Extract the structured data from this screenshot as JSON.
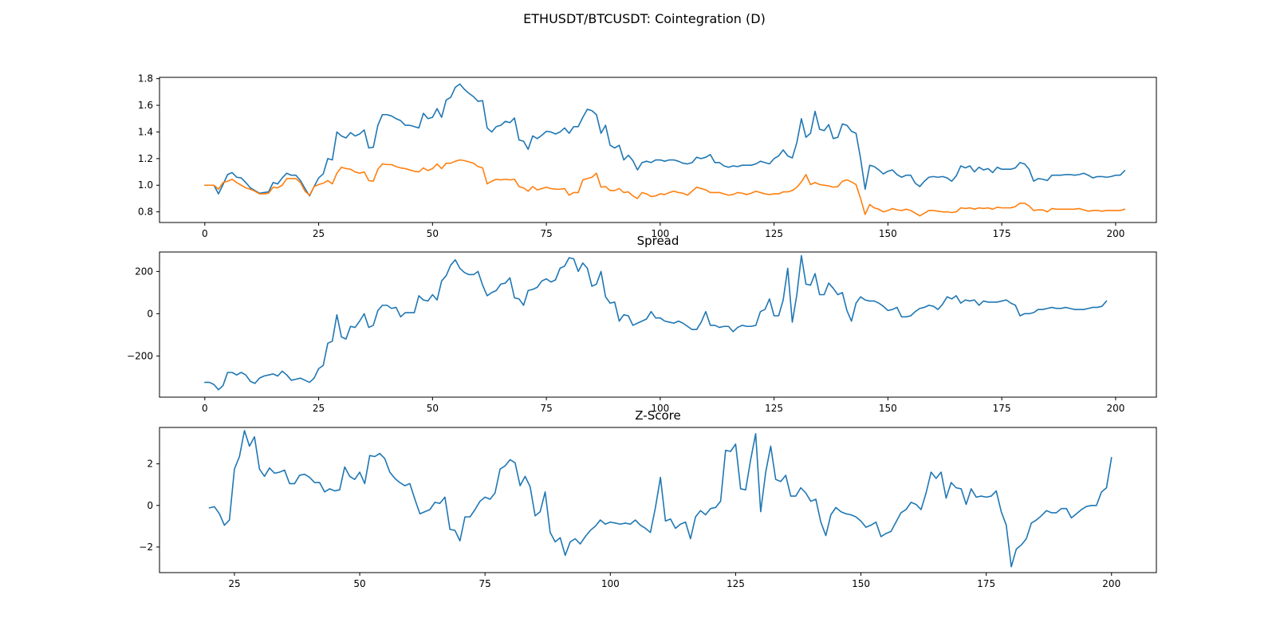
{
  "figure": {
    "suptitle": "ETHUSDT/BTCUSDT: Cointegration (D)"
  },
  "colors": {
    "series_1": "#1f77b4",
    "series_2": "#ff7f0e"
  },
  "chart_data": [
    {
      "type": "line",
      "title": "",
      "xlabel": "",
      "ylabel": "",
      "xlim": [
        -9.95,
        208.95
      ],
      "ylim": [
        0.72,
        1.81
      ],
      "xticks": [
        0,
        25,
        50,
        75,
        100,
        125,
        150,
        175,
        200
      ],
      "yticks": [
        0.8,
        1.0,
        1.2,
        1.4,
        1.6,
        1.8
      ],
      "ytick_labels": [
        "0.8",
        "1.0",
        "1.2",
        "1.4",
        "1.6",
        "1.8"
      ],
      "grid": false,
      "legend": "none",
      "series": [
        {
          "color": "#1f77b4",
          "x_start": 0,
          "values": [
            1.0,
            1.0,
            1.0,
            0.935,
            1.005,
            1.08,
            1.095,
            1.06,
            1.055,
            1.02,
            0.98,
            0.96,
            0.94,
            0.945,
            0.95,
            1.02,
            1.01,
            1.055,
            1.09,
            1.075,
            1.075,
            1.035,
            0.975,
            0.92,
            0.99,
            1.055,
            1.085,
            1.2,
            1.19,
            1.4,
            1.37,
            1.355,
            1.395,
            1.37,
            1.385,
            1.415,
            1.28,
            1.285,
            1.45,
            1.53,
            1.53,
            1.52,
            1.5,
            1.485,
            1.45,
            1.45,
            1.44,
            1.43,
            1.54,
            1.5,
            1.51,
            1.575,
            1.51,
            1.64,
            1.66,
            1.735,
            1.76,
            1.72,
            1.69,
            1.665,
            1.63,
            1.635,
            1.43,
            1.4,
            1.44,
            1.45,
            1.48,
            1.47,
            1.505,
            1.34,
            1.33,
            1.27,
            1.37,
            1.35,
            1.375,
            1.405,
            1.4,
            1.385,
            1.4,
            1.43,
            1.39,
            1.44,
            1.44,
            1.51,
            1.57,
            1.56,
            1.53,
            1.39,
            1.45,
            1.3,
            1.28,
            1.3,
            1.19,
            1.225,
            1.185,
            1.115,
            1.17,
            1.18,
            1.17,
            1.19,
            1.19,
            1.18,
            1.19,
            1.19,
            1.18,
            1.165,
            1.16,
            1.17,
            1.21,
            1.2,
            1.21,
            1.23,
            1.17,
            1.17,
            1.145,
            1.135,
            1.145,
            1.14,
            1.15,
            1.15,
            1.15,
            1.16,
            1.18,
            1.17,
            1.16,
            1.2,
            1.22,
            1.265,
            1.22,
            1.205,
            1.32,
            1.5,
            1.36,
            1.39,
            1.555,
            1.42,
            1.41,
            1.455,
            1.35,
            1.36,
            1.46,
            1.45,
            1.405,
            1.39,
            1.2,
            0.97,
            1.15,
            1.14,
            1.115,
            1.085,
            1.105,
            1.115,
            1.08,
            1.06,
            1.075,
            1.075,
            1.015,
            0.99,
            1.03,
            1.06,
            1.065,
            1.06,
            1.065,
            1.055,
            1.03,
            1.07,
            1.145,
            1.13,
            1.145,
            1.1,
            1.135,
            1.115,
            1.125,
            1.095,
            1.135,
            1.12,
            1.12,
            1.12,
            1.13,
            1.17,
            1.16,
            1.12,
            1.03,
            1.05,
            1.045,
            1.035,
            1.075,
            1.075,
            1.075,
            1.08,
            1.08,
            1.075,
            1.08,
            1.09,
            1.075,
            1.055,
            1.065,
            1.065,
            1.06,
            1.065,
            1.075,
            1.075,
            1.11
          ]
        },
        {
          "color": "#ff7f0e",
          "x_start": 0,
          "values": [
            1.0,
            1.0,
            1.0,
            0.97,
            1.02,
            1.03,
            1.045,
            1.02,
            1.0,
            0.98,
            0.97,
            0.955,
            0.935,
            0.935,
            0.94,
            0.985,
            0.98,
            1.0,
            1.05,
            1.05,
            1.05,
            1.02,
            0.955,
            0.925,
            0.99,
            1.005,
            1.015,
            1.035,
            1.01,
            1.09,
            1.135,
            1.125,
            1.12,
            1.1,
            1.09,
            1.1,
            1.035,
            1.03,
            1.12,
            1.16,
            1.155,
            1.155,
            1.14,
            1.13,
            1.125,
            1.115,
            1.105,
            1.1,
            1.13,
            1.11,
            1.125,
            1.16,
            1.125,
            1.165,
            1.165,
            1.18,
            1.19,
            1.185,
            1.175,
            1.165,
            1.14,
            1.13,
            1.01,
            1.03,
            1.045,
            1.04,
            1.045,
            1.04,
            1.045,
            0.99,
            0.98,
            0.955,
            0.99,
            0.965,
            0.975,
            0.985,
            0.975,
            0.97,
            0.97,
            0.975,
            0.925,
            0.945,
            0.945,
            1.04,
            1.05,
            1.06,
            1.09,
            0.985,
            0.99,
            0.96,
            0.96,
            0.975,
            0.945,
            0.95,
            0.92,
            0.9,
            0.945,
            0.935,
            0.915,
            0.92,
            0.935,
            0.93,
            0.945,
            0.955,
            0.945,
            0.94,
            0.925,
            0.955,
            0.985,
            0.975,
            0.965,
            0.945,
            0.945,
            0.945,
            0.935,
            0.925,
            0.93,
            0.945,
            0.94,
            0.93,
            0.94,
            0.955,
            0.945,
            0.935,
            0.93,
            0.935,
            0.935,
            0.95,
            0.95,
            0.96,
            0.985,
            1.025,
            1.08,
            1.005,
            1.02,
            1.005,
            1.0,
            0.995,
            0.985,
            0.99,
            1.03,
            1.04,
            1.025,
            1.005,
            0.9,
            0.78,
            0.855,
            0.83,
            0.82,
            0.8,
            0.81,
            0.825,
            0.815,
            0.81,
            0.82,
            0.81,
            0.79,
            0.77,
            0.79,
            0.81,
            0.81,
            0.805,
            0.8,
            0.8,
            0.795,
            0.8,
            0.83,
            0.825,
            0.83,
            0.82,
            0.83,
            0.825,
            0.83,
            0.82,
            0.835,
            0.83,
            0.83,
            0.83,
            0.84,
            0.865,
            0.865,
            0.845,
            0.81,
            0.815,
            0.815,
            0.8,
            0.825,
            0.82,
            0.82,
            0.82,
            0.82,
            0.82,
            0.825,
            0.815,
            0.805,
            0.81,
            0.81,
            0.805,
            0.81,
            0.81,
            0.81,
            0.81,
            0.82
          ]
        }
      ]
    },
    {
      "type": "line",
      "title": "Spread",
      "xlabel": "",
      "ylabel": "",
      "xlim": [
        -9.95,
        208.95
      ],
      "ylim": [
        -395,
        292
      ],
      "xticks": [
        0,
        25,
        50,
        75,
        100,
        125,
        150,
        175,
        200
      ],
      "yticks": [
        -200,
        0,
        200
      ],
      "ytick_labels": [
        "−200",
        "0",
        "200"
      ],
      "grid": false,
      "legend": "none",
      "series": [
        {
          "color": "#1f77b4",
          "x_start": 0,
          "values": [
            -325,
            -325,
            -335,
            -360,
            -340,
            -278,
            -278,
            -290,
            -278,
            -290,
            -320,
            -330,
            -305,
            -295,
            -290,
            -285,
            -295,
            -272,
            -290,
            -315,
            -310,
            -305,
            -315,
            -325,
            -305,
            -260,
            -245,
            -140,
            -130,
            -5,
            -110,
            -120,
            -60,
            -65,
            -35,
            0,
            -65,
            -55,
            15,
            40,
            40,
            25,
            30,
            -15,
            5,
            5,
            5,
            85,
            65,
            60,
            90,
            65,
            155,
            180,
            230,
            255,
            215,
            195,
            185,
            185,
            200,
            135,
            85,
            100,
            110,
            140,
            145,
            170,
            75,
            70,
            40,
            110,
            115,
            125,
            155,
            165,
            150,
            160,
            215,
            225,
            265,
            260,
            200,
            240,
            215,
            130,
            140,
            200,
            80,
            50,
            55,
            -35,
            -5,
            -10,
            -55,
            -45,
            -35,
            -25,
            10,
            -20,
            -20,
            -35,
            -40,
            -45,
            -35,
            -45,
            -60,
            -75,
            -75,
            -40,
            10,
            -55,
            -55,
            -65,
            -60,
            -60,
            -85,
            -65,
            -55,
            -60,
            -60,
            -55,
            10,
            20,
            70,
            -10,
            -10,
            65,
            215,
            -40,
            90,
            275,
            140,
            135,
            190,
            90,
            90,
            145,
            120,
            90,
            100,
            15,
            -35,
            50,
            80,
            65,
            60,
            60,
            50,
            35,
            15,
            20,
            30,
            -15,
            -15,
            -10,
            10,
            25,
            30,
            40,
            35,
            20,
            45,
            80,
            70,
            85,
            50,
            65,
            60,
            65,
            40,
            60,
            55,
            55,
            55,
            60,
            65,
            50,
            40,
            -10,
            0,
            0,
            5,
            20,
            20,
            25,
            30,
            25,
            25,
            30,
            25,
            20,
            20,
            20,
            25,
            30,
            30,
            35,
            60
          ]
        }
      ]
    },
    {
      "type": "line",
      "title": "Z-Score",
      "xlabel": "",
      "ylabel": "",
      "xlim": [
        10.05,
        208.95
      ],
      "ylim": [
        -3.23,
        3.75
      ],
      "xticks": [
        25,
        50,
        75,
        100,
        125,
        150,
        175,
        200
      ],
      "yticks": [
        -2,
        0,
        2
      ],
      "ytick_labels": [
        "−2",
        "0",
        "2"
      ],
      "grid": false,
      "legend": "none",
      "series": [
        {
          "color": "#1f77b4",
          "x_start": 20,
          "values": [
            -0.12,
            -0.06,
            -0.4,
            -0.95,
            -0.7,
            1.75,
            2.35,
            3.6,
            2.85,
            3.3,
            1.75,
            1.4,
            1.8,
            1.55,
            1.6,
            1.7,
            1.05,
            1.05,
            1.45,
            1.5,
            1.35,
            1.1,
            1.1,
            0.65,
            0.8,
            0.7,
            0.75,
            1.85,
            1.4,
            1.25,
            1.6,
            1.05,
            2.4,
            2.35,
            2.5,
            2.25,
            1.6,
            1.3,
            1.1,
            0.95,
            1.05,
            0.3,
            -0.4,
            -0.3,
            -0.2,
            0.15,
            0.1,
            0.4,
            -1.15,
            -1.2,
            -1.7,
            -0.55,
            -0.55,
            -0.2,
            0.2,
            0.4,
            0.3,
            0.6,
            1.75,
            1.9,
            2.2,
            2.05,
            0.95,
            1.4,
            0.9,
            -0.5,
            -0.3,
            0.65,
            -1.3,
            -1.75,
            -1.55,
            -2.4,
            -1.75,
            -1.6,
            -1.85,
            -1.5,
            -1.2,
            -1.0,
            -0.7,
            -0.9,
            -0.8,
            -0.85,
            -0.9,
            -0.85,
            -0.9,
            -0.7,
            -0.95,
            -1.1,
            -1.3,
            -0.1,
            1.35,
            -0.75,
            -0.65,
            -1.1,
            -0.9,
            -0.8,
            -1.6,
            -0.55,
            -0.25,
            -0.45,
            -0.15,
            -0.1,
            0.2,
            2.65,
            2.6,
            2.95,
            0.8,
            0.75,
            2.2,
            3.45,
            -0.3,
            1.6,
            2.85,
            1.25,
            1.15,
            1.45,
            0.45,
            0.45,
            0.85,
            0.6,
            0.2,
            0.3,
            -0.8,
            -1.45,
            -0.45,
            -0.1,
            -0.3,
            -0.4,
            -0.45,
            -0.55,
            -0.75,
            -1.05,
            -0.95,
            -0.8,
            -1.5,
            -1.35,
            -1.25,
            -0.8,
            -0.35,
            -0.2,
            0.15,
            0.05,
            -0.2,
            0.6,
            1.6,
            1.3,
            1.6,
            0.35,
            1.1,
            0.85,
            0.8,
            0.05,
            0.8,
            0.4,
            0.45,
            0.4,
            0.45,
            0.7,
            -0.3,
            -0.95,
            -2.95,
            -2.1,
            -1.9,
            -1.6,
            -0.85,
            -0.7,
            -0.5,
            -0.25,
            -0.35,
            -0.35,
            -0.15,
            -0.15,
            -0.6,
            -0.4,
            -0.2,
            -0.05,
            0.0,
            0.0,
            0.65,
            0.85,
            2.3
          ]
        }
      ]
    }
  ]
}
